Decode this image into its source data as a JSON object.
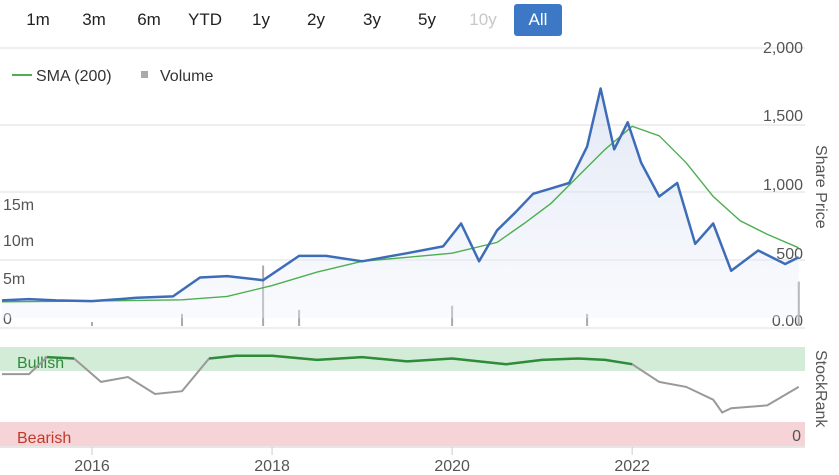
{
  "range_buttons": [
    {
      "label": "1m",
      "state": "normal"
    },
    {
      "label": "3m",
      "state": "normal"
    },
    {
      "label": "6m",
      "state": "normal"
    },
    {
      "label": "YTD",
      "state": "normal"
    },
    {
      "label": "1y",
      "state": "normal"
    },
    {
      "label": "2y",
      "state": "normal"
    },
    {
      "label": "3y",
      "state": "normal"
    },
    {
      "label": "5y",
      "state": "normal"
    },
    {
      "label": "10y",
      "state": "disabled"
    },
    {
      "label": "All",
      "state": "active"
    }
  ],
  "legend": {
    "sma_label": "SMA (200)",
    "volume_label": "Volume"
  },
  "colors": {
    "price": "#3d6db8",
    "sma": "#4caf50",
    "volume": "#aaaaaa",
    "bullish_band": "#d3ecd8",
    "bearish_band": "#f5d3d6",
    "bullish_text": "#2e8b3a",
    "bearish_text": "#c0392b",
    "stockrank": "#999999",
    "grid": "#dddddd",
    "active_button": "#3d78c6"
  },
  "chart_data": [
    {
      "type": "line",
      "ylabel": "Share Price",
      "ylim": [
        0,
        2000
      ],
      "y_ticks": [
        "0.00",
        "500",
        "1,000",
        "1,500",
        "2,000"
      ],
      "volume_ticks": [
        "0",
        "5m",
        "10m",
        "15m"
      ],
      "volume_ylim": [
        0,
        20000000
      ],
      "x_ticks": [
        "2016",
        "2018",
        "2020",
        "2022"
      ],
      "series": [
        {
          "name": "Price",
          "x": [
            2015.0,
            2015.3,
            2015.6,
            2016.0,
            2016.5,
            2016.9,
            2017.2,
            2017.5,
            2017.9,
            2018.3,
            2018.6,
            2019.0,
            2019.5,
            2019.9,
            2020.1,
            2020.3,
            2020.5,
            2020.7,
            2020.9,
            2021.1,
            2021.3,
            2021.5,
            2021.65,
            2021.8,
            2021.95,
            2022.1,
            2022.3,
            2022.5,
            2022.7,
            2022.9,
            2023.1,
            2023.4,
            2023.7,
            2023.85
          ],
          "values": [
            130,
            140,
            130,
            125,
            150,
            160,
            300,
            310,
            280,
            460,
            460,
            420,
            480,
            530,
            700,
            420,
            650,
            780,
            920,
            960,
            1000,
            1270,
            1700,
            1250,
            1450,
            1150,
            900,
            1000,
            550,
            700,
            350,
            500,
            400,
            450
          ]
        },
        {
          "name": "SMA (200)",
          "x": [
            2015.0,
            2016.0,
            2017.0,
            2017.5,
            2018.0,
            2018.5,
            2019.0,
            2019.5,
            2020.0,
            2020.5,
            2020.8,
            2021.1,
            2021.4,
            2021.7,
            2022.0,
            2022.3,
            2022.6,
            2022.9,
            2023.2,
            2023.5,
            2023.85
          ],
          "values": [
            120,
            125,
            135,
            160,
            240,
            340,
            420,
            450,
            480,
            560,
            700,
            850,
            1050,
            1250,
            1420,
            1350,
            1150,
            900,
            720,
            620,
            520
          ]
        }
      ],
      "volume_series": {
        "name": "Volume",
        "x": [
          2016.0,
          2017.0,
          2017.9,
          2018.3,
          2020.0,
          2021.5,
          2023.85
        ],
        "values": [
          500000,
          1500000,
          7500000,
          2000000,
          2500000,
          1500000,
          5500000
        ]
      }
    },
    {
      "type": "line",
      "ylabel": "StockRank",
      "ylim": [
        0,
        100
      ],
      "y_ticks": [
        "0"
      ],
      "bands": {
        "bullish": "Bullish",
        "bearish": "Bearish"
      },
      "series": [
        {
          "name": "StockRank",
          "x": [
            2015.0,
            2015.3,
            2015.5,
            2015.8,
            2016.1,
            2016.4,
            2016.7,
            2017.0,
            2017.3,
            2017.6,
            2018.0,
            2018.5,
            2019.0,
            2019.5,
            2020.0,
            2020.3,
            2020.6,
            2021.0,
            2021.4,
            2021.7,
            2022.0,
            2022.3,
            2022.6,
            2022.9,
            2023.0,
            2023.1,
            2023.5,
            2023.85
          ],
          "values": [
            66,
            66,
            90,
            88,
            55,
            62,
            38,
            42,
            88,
            92,
            92,
            86,
            90,
            84,
            88,
            84,
            80,
            86,
            88,
            86,
            80,
            55,
            48,
            30,
            12,
            18,
            22,
            48
          ]
        }
      ]
    }
  ]
}
